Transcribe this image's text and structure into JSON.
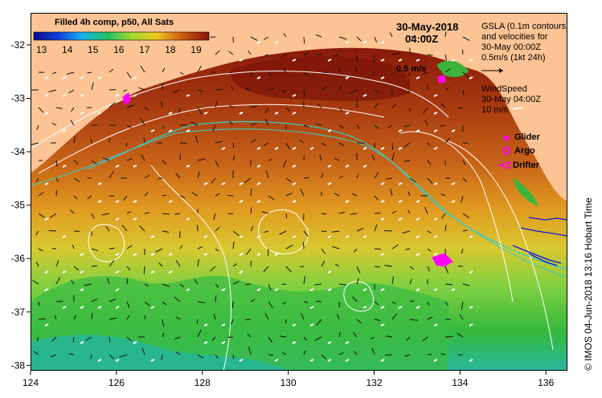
{
  "map": {
    "lon_ticks": [
      "124",
      "126",
      "128",
      "130",
      "132",
      "134",
      "136"
    ],
    "lat_ticks": [
      "-32",
      "-33",
      "-34",
      "-35",
      "-36",
      "-37",
      "-38"
    ],
    "lon_range": [
      124,
      136.5
    ],
    "lat_range": [
      -38.1,
      -31.4
    ]
  },
  "legend": {
    "title": "Filled 4h comp, p50, All Sats",
    "ticks": [
      "13",
      "14",
      "15",
      "16",
      "17",
      "18",
      "19"
    ],
    "range": [
      12.7,
      19.5
    ]
  },
  "datetime": {
    "date": "30-May-2018",
    "time": "04:00Z"
  },
  "info": {
    "gsla_line1": "GSLA (0.1m contours)",
    "gsla_line2": "and velocities for",
    "gsla_line3": "30-May 00:00Z",
    "gsla_line4": "0.5m/s (1kt 24h)",
    "wind_line1": "WindSpeed",
    "wind_line2": "30-May 04:00Z",
    "wind_line3": "10 m/s",
    "current_scale": "0.5 m/s"
  },
  "platforms": {
    "glider": "Glider",
    "argo": "Argo",
    "drifter": "Drifter"
  },
  "credit": "© IMOS 04-Jun-2018 13:16 Hobart Time",
  "colors": {
    "land": "#fcc494",
    "coast_green": "#3cb43c",
    "contour": "#ffffff",
    "isobath": "#40c8c0",
    "platform": "#ff00ff",
    "drifter_track": "#1010e0"
  }
}
